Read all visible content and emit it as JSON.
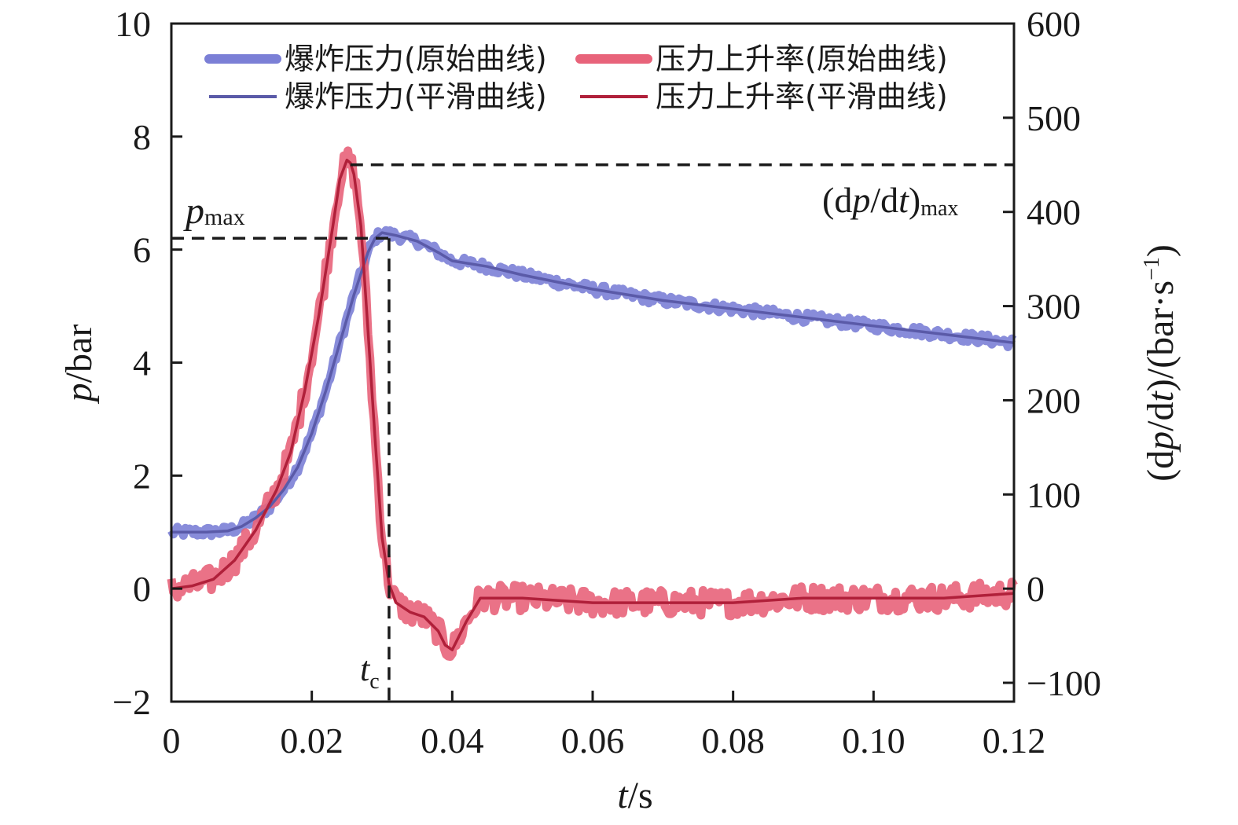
{
  "chart_data": {
    "type": "line",
    "x_axis": {
      "var": "t",
      "unit": "/s",
      "ticks": [
        0,
        0.02,
        0.04,
        0.06,
        0.08,
        0.1,
        0.12
      ],
      "tick_labels": [
        "0",
        "0.02",
        "0.04",
        "0.06",
        "0.08",
        "0.10",
        "0.12"
      ],
      "range": [
        0,
        0.12
      ]
    },
    "y_left": {
      "var": "p",
      "unit": "/bar",
      "ticks": [
        -2,
        0,
        2,
        4,
        6,
        8,
        10
      ],
      "tick_labels": [
        "−2",
        "0",
        "2",
        "4",
        "6",
        "8",
        "10"
      ],
      "range": [
        -2,
        10
      ]
    },
    "y_right": {
      "label_prefix": "(d",
      "label_p": "p",
      "label_mid": "/d",
      "label_t": "t",
      "label_mid2": ")/(bar·s",
      "label_sup": "−1",
      "label_suffix": ")",
      "ticks": [
        -100,
        0,
        100,
        200,
        300,
        400,
        500,
        600
      ],
      "tick_labels": [
        "−100",
        "0",
        "100",
        "200",
        "300",
        "400",
        "500",
        "600"
      ],
      "range": [
        -120,
        600
      ]
    },
    "grid": false,
    "legend_position": "top",
    "series": [
      {
        "name": "爆炸压力(原始曲线)",
        "axis": "left",
        "color": "#7b7fd6",
        "style": "raw",
        "x": [
          0,
          0.005,
          0.008,
          0.01,
          0.012,
          0.014,
          0.016,
          0.018,
          0.02,
          0.022,
          0.024,
          0.026,
          0.028,
          0.029,
          0.03,
          0.032,
          0.035,
          0.038,
          0.04,
          0.045,
          0.05,
          0.06,
          0.07,
          0.08,
          0.09,
          0.1,
          0.11,
          0.12
        ],
        "y": [
          1.0,
          1.0,
          1.02,
          1.1,
          1.25,
          1.45,
          1.75,
          2.15,
          2.75,
          3.5,
          4.35,
          5.2,
          5.95,
          6.2,
          6.3,
          6.25,
          6.15,
          5.95,
          5.8,
          5.7,
          5.55,
          5.3,
          5.1,
          4.95,
          4.8,
          4.65,
          4.5,
          4.35
        ]
      },
      {
        "name": "爆炸压力(平滑曲线)",
        "axis": "left",
        "color": "#5a5aa8",
        "style": "smooth",
        "x": [
          0,
          0.005,
          0.008,
          0.01,
          0.012,
          0.014,
          0.016,
          0.018,
          0.02,
          0.022,
          0.024,
          0.026,
          0.028,
          0.029,
          0.03,
          0.032,
          0.035,
          0.038,
          0.04,
          0.045,
          0.05,
          0.06,
          0.07,
          0.08,
          0.09,
          0.1,
          0.11,
          0.12
        ],
        "y": [
          1.0,
          1.0,
          1.02,
          1.1,
          1.25,
          1.45,
          1.75,
          2.15,
          2.75,
          3.5,
          4.35,
          5.2,
          5.95,
          6.2,
          6.3,
          6.25,
          6.15,
          5.95,
          5.8,
          5.7,
          5.55,
          5.3,
          5.1,
          4.95,
          4.8,
          4.65,
          4.5,
          4.35
        ]
      },
      {
        "name": "压力上升率(原始曲线)",
        "axis": "right",
        "color": "#e8637a",
        "style": "raw",
        "x": [
          0,
          0.003,
          0.006,
          0.009,
          0.012,
          0.015,
          0.017,
          0.019,
          0.021,
          0.023,
          0.024,
          0.025,
          0.0255,
          0.026,
          0.027,
          0.028,
          0.029,
          0.03,
          0.031,
          0.032,
          0.034,
          0.036,
          0.038,
          0.039,
          0.04,
          0.041,
          0.042,
          0.044,
          0.05,
          0.06,
          0.07,
          0.08,
          0.09,
          0.1,
          0.11,
          0.12
        ],
        "y": [
          0,
          3,
          10,
          30,
          62,
          105,
          145,
          210,
          290,
          385,
          435,
          455,
          452,
          440,
          385,
          275,
          160,
          55,
          5,
          -15,
          -25,
          -30,
          -45,
          -60,
          -65,
          -50,
          -35,
          -10,
          -10,
          -15,
          -15,
          -15,
          -10,
          -10,
          -10,
          -5
        ]
      },
      {
        "name": "压力上升率(平滑曲线)",
        "axis": "right",
        "color": "#b0203a",
        "style": "smooth",
        "x": [
          0,
          0.003,
          0.006,
          0.009,
          0.012,
          0.015,
          0.017,
          0.019,
          0.021,
          0.023,
          0.024,
          0.025,
          0.0255,
          0.026,
          0.027,
          0.028,
          0.029,
          0.03,
          0.031,
          0.032,
          0.034,
          0.036,
          0.038,
          0.039,
          0.04,
          0.041,
          0.042,
          0.044,
          0.05,
          0.06,
          0.07,
          0.08,
          0.09,
          0.1,
          0.11,
          0.12
        ],
        "y": [
          0,
          3,
          10,
          30,
          62,
          105,
          145,
          210,
          290,
          385,
          435,
          455,
          452,
          440,
          385,
          275,
          160,
          55,
          5,
          -15,
          -25,
          -30,
          -45,
          -60,
          -65,
          -50,
          -35,
          -10,
          -10,
          -15,
          -15,
          -15,
          -10,
          -10,
          -10,
          -5
        ]
      }
    ],
    "annotations": {
      "p_max": {
        "label_main": "p",
        "label_sub": "max",
        "p_value": 6.2,
        "t_value": 0.031
      },
      "dpdt_max": {
        "label_prefix": "(d",
        "label_p": "p",
        "label_mid": "/d",
        "label_t": "t",
        "label_suffix": ")",
        "label_sub": "max",
        "value": 450,
        "t_start": 0.0255
      },
      "t_c": {
        "label_main": "t",
        "label_sub": "c",
        "t_value": 0.031
      }
    }
  }
}
